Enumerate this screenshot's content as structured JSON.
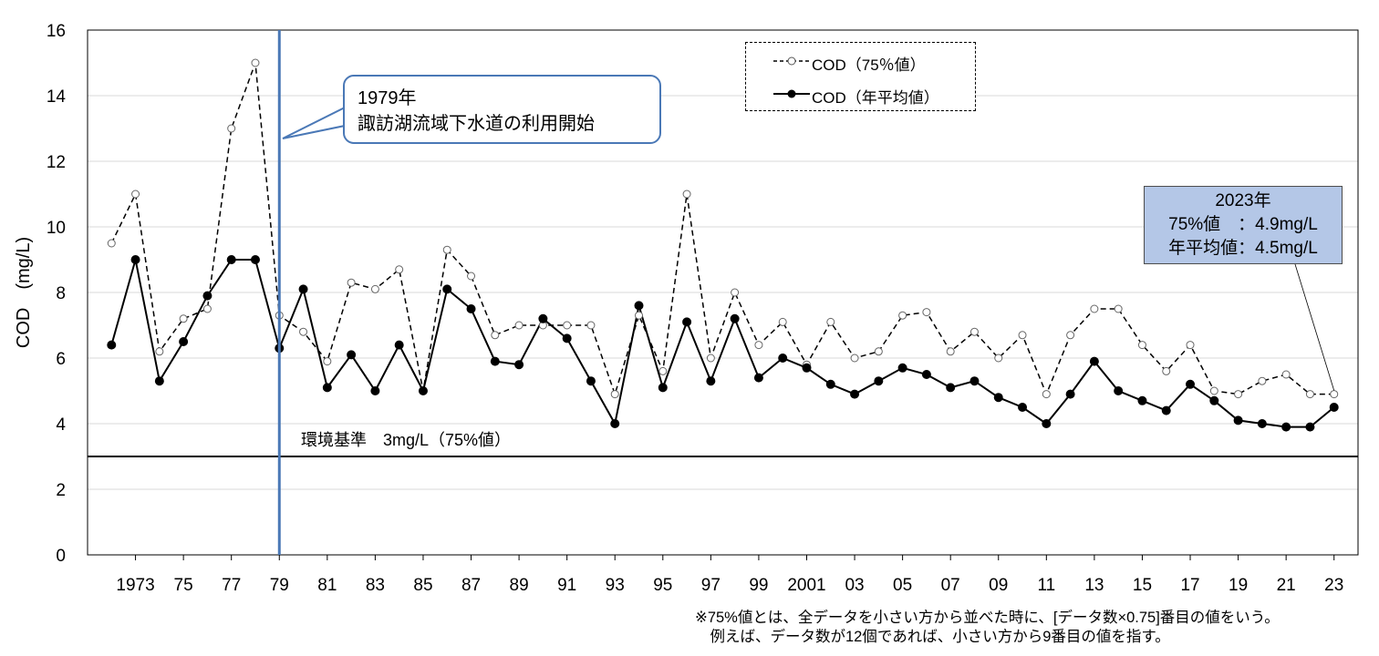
{
  "chart_data": {
    "type": "line",
    "title": "",
    "xlabel": "",
    "ylabel": "COD　(mg/L)",
    "ylim": [
      0,
      16
    ],
    "yticks": [
      0,
      2,
      4,
      6,
      8,
      10,
      12,
      14,
      16
    ],
    "x": [
      1972,
      1973,
      1974,
      1975,
      1976,
      1977,
      1978,
      1979,
      1980,
      1981,
      1982,
      1983,
      1984,
      1985,
      1986,
      1987,
      1988,
      1989,
      1990,
      1991,
      1992,
      1993,
      1994,
      1995,
      1996,
      1997,
      1998,
      1999,
      2000,
      2001,
      2002,
      2003,
      2004,
      2005,
      2006,
      2007,
      2008,
      2009,
      2010,
      2011,
      2012,
      2013,
      2014,
      2015,
      2016,
      2017,
      2018,
      2019,
      2020,
      2021,
      2022,
      2023
    ],
    "xtick_labels": [
      {
        "x": 1973,
        "label": "1973"
      },
      {
        "x": 1975,
        "label": "75"
      },
      {
        "x": 1977,
        "label": "77"
      },
      {
        "x": 1979,
        "label": "79"
      },
      {
        "x": 1981,
        "label": "81"
      },
      {
        "x": 1983,
        "label": "83"
      },
      {
        "x": 1985,
        "label": "85"
      },
      {
        "x": 1987,
        "label": "87"
      },
      {
        "x": 1989,
        "label": "89"
      },
      {
        "x": 1991,
        "label": "91"
      },
      {
        "x": 1993,
        "label": "93"
      },
      {
        "x": 1995,
        "label": "95"
      },
      {
        "x": 1997,
        "label": "97"
      },
      {
        "x": 1999,
        "label": "99"
      },
      {
        "x": 2001,
        "label": "2001"
      },
      {
        "x": 2003,
        "label": "03"
      },
      {
        "x": 2005,
        "label": "05"
      },
      {
        "x": 2007,
        "label": "07"
      },
      {
        "x": 2009,
        "label": "09"
      },
      {
        "x": 2011,
        "label": "11"
      },
      {
        "x": 2013,
        "label": "13"
      },
      {
        "x": 2015,
        "label": "15"
      },
      {
        "x": 2017,
        "label": "17"
      },
      {
        "x": 2019,
        "label": "19"
      },
      {
        "x": 2021,
        "label": "21"
      },
      {
        "x": 2023,
        "label": "23"
      }
    ],
    "series": [
      {
        "name": "COD（75％値）",
        "style": "dashed-hollow",
        "color": "#000000",
        "values": [
          9.5,
          11.0,
          6.2,
          7.2,
          7.5,
          13.0,
          15.0,
          7.3,
          6.8,
          5.9,
          8.3,
          8.1,
          8.7,
          5.0,
          9.3,
          8.5,
          6.7,
          7.0,
          7.0,
          7.0,
          7.0,
          4.9,
          7.3,
          5.6,
          11.0,
          6.0,
          8.0,
          6.4,
          7.1,
          5.8,
          7.1,
          6.0,
          6.2,
          7.3,
          7.4,
          6.2,
          6.8,
          6.0,
          6.7,
          4.9,
          6.7,
          7.5,
          7.5,
          6.4,
          5.6,
          6.4,
          5.0,
          4.9,
          5.3,
          5.5,
          4.9,
          4.9
        ]
      },
      {
        "name": "COD（年平均値）",
        "style": "solid-filled",
        "color": "#000000",
        "values": [
          6.4,
          9.0,
          5.3,
          6.5,
          7.9,
          9.0,
          9.0,
          6.3,
          8.1,
          5.1,
          6.1,
          5.0,
          6.4,
          5.0,
          8.1,
          7.5,
          5.9,
          5.8,
          7.2,
          6.6,
          5.3,
          4.0,
          7.6,
          5.1,
          7.1,
          5.3,
          7.2,
          5.4,
          6.0,
          5.7,
          5.2,
          4.9,
          5.3,
          5.7,
          5.5,
          5.1,
          5.3,
          4.8,
          4.5,
          4.0,
          4.9,
          5.9,
          5.0,
          4.7,
          4.4,
          5.2,
          4.7,
          4.1,
          4.0,
          3.9,
          3.9,
          4.5
        ]
      }
    ],
    "reference_line": {
      "y": 3,
      "label": "環境基準　3mg/L（75%値）"
    },
    "vertical_marker": {
      "x": 1979,
      "color": "#4a78b6"
    },
    "legend_position": "top-center-right",
    "grid": "horizontal"
  },
  "annotations": {
    "callout_1979_line1": "1979年",
    "callout_1979_line2": "諏訪湖流域下水道の利用開始",
    "info_2023_line1": "2023年",
    "info_2023_line2": "75%値　：4.9mg/L",
    "info_2023_line3": "年平均値：4.5mg/L",
    "note_line1": "※75%値とは、全データを小さい方から並べた時に、[データ数×0.75]番目の値をいう。",
    "note_line2": "　例えば、データ数が12個であれば、小さい方から9番目の値を指す。"
  },
  "colors": {
    "accent_blue": "#4a78b6",
    "info_box_fill": "#b4c7e7",
    "gridline": "#d9d9d9"
  }
}
